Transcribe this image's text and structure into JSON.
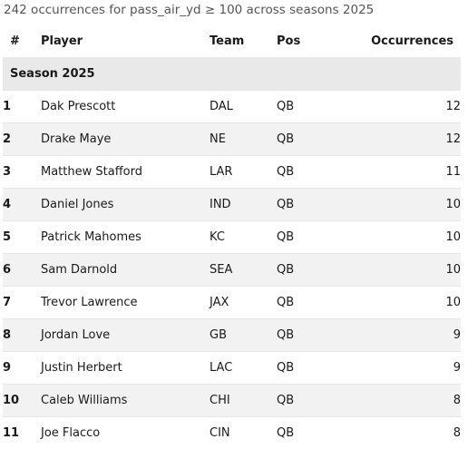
{
  "summary": "242 occurrences for pass_air_yd ≥ 100 across seasons 2025",
  "columns": {
    "rank": "#",
    "player": "Player",
    "team": "Team",
    "pos": "Pos",
    "occurrences": "Occurrences"
  },
  "group_label": "Season 2025",
  "rows": [
    {
      "rank": "1",
      "player": "Dak Prescott",
      "team": "DAL",
      "pos": "QB",
      "occurrences": "12"
    },
    {
      "rank": "2",
      "player": "Drake Maye",
      "team": "NE",
      "pos": "QB",
      "occurrences": "12"
    },
    {
      "rank": "3",
      "player": "Matthew Stafford",
      "team": "LAR",
      "pos": "QB",
      "occurrences": "11"
    },
    {
      "rank": "4",
      "player": "Daniel Jones",
      "team": "IND",
      "pos": "QB",
      "occurrences": "10"
    },
    {
      "rank": "5",
      "player": "Patrick Mahomes",
      "team": "KC",
      "pos": "QB",
      "occurrences": "10"
    },
    {
      "rank": "6",
      "player": "Sam Darnold",
      "team": "SEA",
      "pos": "QB",
      "occurrences": "10"
    },
    {
      "rank": "7",
      "player": "Trevor Lawrence",
      "team": "JAX",
      "pos": "QB",
      "occurrences": "10"
    },
    {
      "rank": "8",
      "player": "Jordan Love",
      "team": "GB",
      "pos": "QB",
      "occurrences": "9"
    },
    {
      "rank": "9",
      "player": "Justin Herbert",
      "team": "LAC",
      "pos": "QB",
      "occurrences": "9"
    },
    {
      "rank": "10",
      "player": "Caleb Williams",
      "team": "CHI",
      "pos": "QB",
      "occurrences": "8"
    },
    {
      "rank": "11",
      "player": "Joe Flacco",
      "team": "CIN",
      "pos": "QB",
      "occurrences": "8"
    }
  ]
}
